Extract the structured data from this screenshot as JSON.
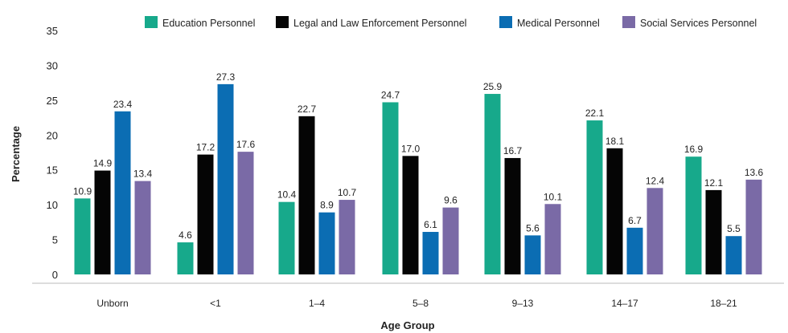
{
  "chart_data": {
    "type": "bar",
    "title": "",
    "xlabel": "Age Group",
    "ylabel": "Percentage",
    "ylim": [
      0,
      35
    ],
    "yticks": [
      0,
      5,
      10,
      15,
      20,
      25,
      30,
      35
    ],
    "grid": false,
    "legend_placement": "top",
    "categories": [
      "Unborn",
      "<1",
      "1–4",
      "5–8",
      "9–13",
      "14–17",
      "18–21"
    ],
    "series": [
      {
        "name": "Education Personnel",
        "color": "#17a98b",
        "values": [
          10.9,
          4.6,
          10.4,
          24.7,
          25.9,
          22.1,
          16.9
        ]
      },
      {
        "name": "Legal and Law Enforcement Personnel",
        "color": "#050505",
        "values": [
          14.9,
          17.2,
          22.7,
          17.0,
          16.7,
          18.1,
          12.1
        ]
      },
      {
        "name": "Medical Personnel",
        "color": "#0b6db3",
        "values": [
          23.4,
          27.3,
          8.9,
          6.1,
          5.6,
          6.7,
          5.5
        ]
      },
      {
        "name": "Social Services Personnel",
        "color": "#7a6aa6",
        "values": [
          13.4,
          17.6,
          10.7,
          9.6,
          10.1,
          12.4,
          13.6
        ]
      }
    ]
  }
}
